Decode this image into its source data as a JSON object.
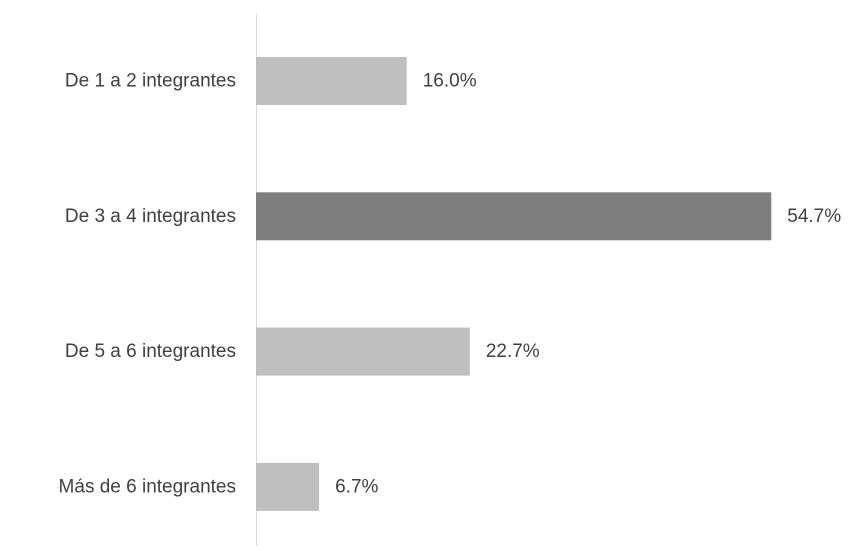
{
  "chart_data": {
    "type": "bar",
    "orientation": "horizontal",
    "categories": [
      "De 1 a 2 integrantes",
      "De 3 a 4 integrantes",
      "De 5 a 6 integrantes",
      "Más de 6 integrantes"
    ],
    "values": [
      16.0,
      54.7,
      22.7,
      6.7
    ],
    "value_labels": [
      "16.0%",
      "54.7%",
      "22.7%",
      "6.7%"
    ],
    "unit": "%",
    "xlim": [
      0,
      54.7
    ],
    "grid": false,
    "legend": "none",
    "colors": {
      "bar": "#bfbfbf",
      "highlight_bar": "#7f7f7f",
      "axis": "#d9d9d9",
      "text": "#404040"
    },
    "highlight_index": 1
  }
}
